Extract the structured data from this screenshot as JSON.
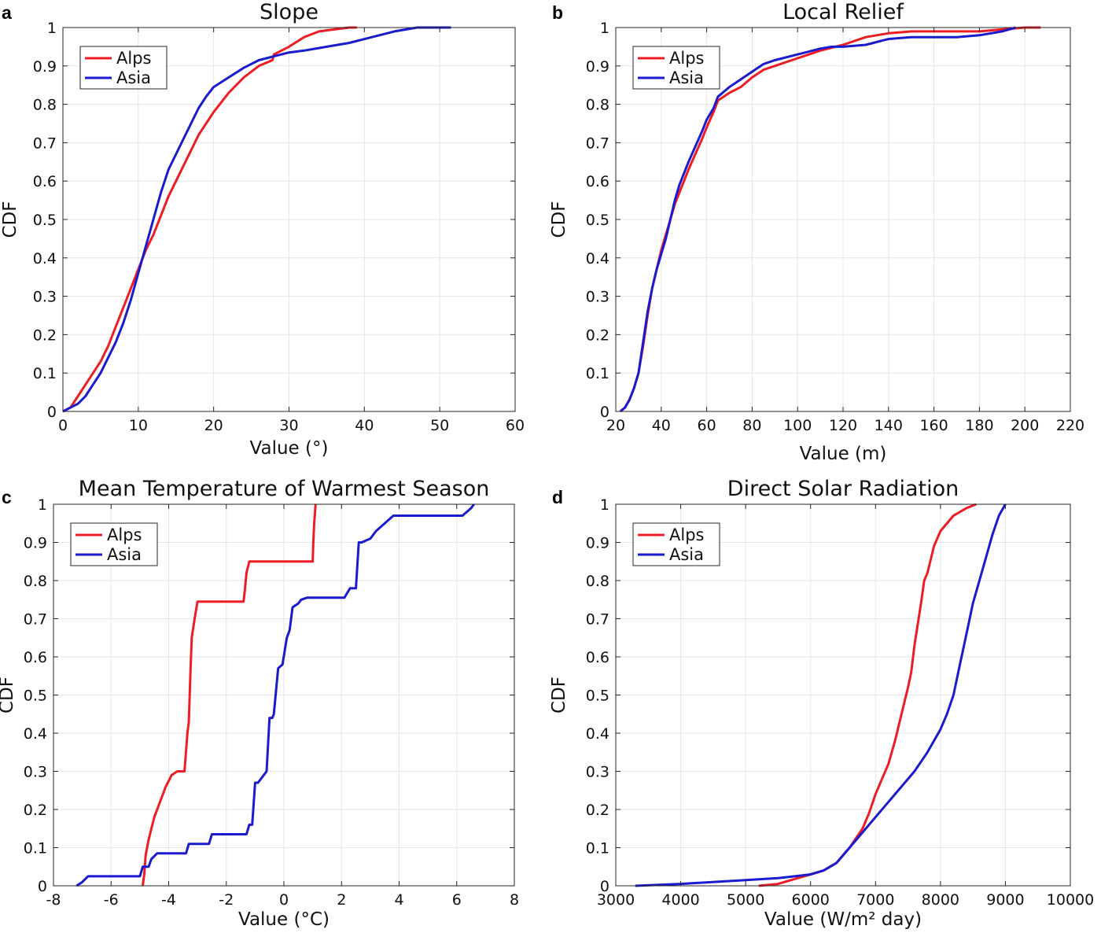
{
  "colors": {
    "alps": "#ee1c24",
    "asia": "#1a1acf"
  },
  "chart_data": [
    {
      "type": "line",
      "panel": "a",
      "title": "Slope",
      "xlabel": "Value (°)",
      "ylabel": "CDF",
      "xlim": [
        0,
        60
      ],
      "ylim": [
        0,
        1
      ],
      "xticks": [
        0,
        10,
        20,
        30,
        40,
        50,
        60
      ],
      "yticks": [
        0,
        0.1,
        0.2,
        0.3,
        0.4,
        0.5,
        0.6,
        0.7,
        0.8,
        0.9,
        1
      ],
      "grid": true,
      "legend": {
        "position": "top-left",
        "entries": [
          "Alps",
          "Asia"
        ]
      },
      "series": [
        {
          "name": "Alps",
          "x": [
            0,
            1,
            2,
            3,
            4,
            5,
            6,
            7,
            8,
            9,
            10,
            11,
            12,
            13,
            14,
            15,
            16,
            17,
            18,
            19,
            20,
            22,
            24,
            26,
            27.8,
            28,
            30,
            32,
            34,
            36,
            38,
            39
          ],
          "y": [
            0,
            0.01,
            0.04,
            0.07,
            0.1,
            0.13,
            0.17,
            0.22,
            0.27,
            0.32,
            0.37,
            0.42,
            0.46,
            0.51,
            0.56,
            0.6,
            0.64,
            0.68,
            0.72,
            0.75,
            0.78,
            0.83,
            0.87,
            0.9,
            0.915,
            0.93,
            0.95,
            0.975,
            0.99,
            0.995,
            1,
            1
          ]
        },
        {
          "name": "Asia",
          "x": [
            0,
            1,
            2,
            3,
            4,
            5,
            6,
            7,
            8,
            9,
            10,
            11,
            12,
            13,
            14,
            15,
            16,
            17,
            18,
            19,
            20,
            22,
            24,
            26,
            28,
            30,
            32,
            35,
            38,
            41,
            44,
            47,
            50,
            51.5
          ],
          "y": [
            0,
            0.01,
            0.02,
            0.04,
            0.07,
            0.1,
            0.14,
            0.18,
            0.23,
            0.29,
            0.36,
            0.43,
            0.5,
            0.57,
            0.63,
            0.67,
            0.71,
            0.75,
            0.79,
            0.82,
            0.845,
            0.87,
            0.895,
            0.915,
            0.925,
            0.935,
            0.94,
            0.95,
            0.96,
            0.975,
            0.99,
            1,
            1,
            1
          ]
        }
      ]
    },
    {
      "type": "line",
      "panel": "b",
      "title": "Local Relief",
      "xlabel": "Value (m)",
      "ylabel": "CDF",
      "xlim": [
        20,
        220
      ],
      "ylim": [
        0,
        1
      ],
      "xticks": [
        20,
        40,
        60,
        80,
        100,
        120,
        140,
        160,
        180,
        200,
        220
      ],
      "yticks": [
        0,
        0.1,
        0.2,
        0.3,
        0.4,
        0.5,
        0.6,
        0.7,
        0.8,
        0.9,
        1
      ],
      "grid": true,
      "legend": {
        "position": "top-left",
        "entries": [
          "Alps",
          "Asia"
        ]
      },
      "series": [
        {
          "name": "Alps",
          "x": [
            22,
            24,
            26,
            28,
            30,
            32,
            34,
            36,
            38,
            40,
            42,
            44,
            46,
            48,
            50,
            52,
            55,
            58,
            60,
            63,
            65,
            70,
            75,
            80,
            85,
            90,
            100,
            110,
            120,
            130,
            140,
            150,
            160,
            180,
            190,
            200,
            207
          ],
          "y": [
            0,
            0.01,
            0.03,
            0.06,
            0.1,
            0.17,
            0.25,
            0.32,
            0.37,
            0.42,
            0.46,
            0.5,
            0.54,
            0.57,
            0.6,
            0.63,
            0.67,
            0.71,
            0.74,
            0.78,
            0.81,
            0.83,
            0.845,
            0.87,
            0.89,
            0.9,
            0.92,
            0.94,
            0.955,
            0.975,
            0.985,
            0.99,
            0.99,
            0.99,
            0.995,
            1,
            1
          ]
        },
        {
          "name": "Asia",
          "x": [
            22,
            24,
            26,
            28,
            30,
            32,
            34,
            36,
            38,
            40,
            42,
            44,
            46,
            48,
            50,
            52,
            55,
            58,
            60,
            63,
            65,
            70,
            75,
            80,
            85,
            90,
            100,
            110,
            115,
            120,
            130,
            140,
            150,
            160,
            170,
            180,
            190,
            196
          ],
          "y": [
            0,
            0.01,
            0.03,
            0.06,
            0.1,
            0.18,
            0.26,
            0.32,
            0.37,
            0.41,
            0.45,
            0.5,
            0.55,
            0.59,
            0.62,
            0.65,
            0.69,
            0.73,
            0.76,
            0.79,
            0.82,
            0.845,
            0.865,
            0.885,
            0.905,
            0.915,
            0.93,
            0.945,
            0.95,
            0.95,
            0.955,
            0.97,
            0.975,
            0.975,
            0.975,
            0.98,
            0.99,
            1
          ]
        }
      ]
    },
    {
      "type": "line",
      "panel": "c",
      "title": "Mean Temperature of Warmest Season",
      "xlabel": "Value (°C)",
      "ylabel": "CDF",
      "xlim": [
        -8,
        8
      ],
      "ylim": [
        0,
        1
      ],
      "xticks": [
        -8,
        -6,
        -4,
        -2,
        0,
        2,
        4,
        6,
        8
      ],
      "yticks": [
        0,
        0.1,
        0.2,
        0.3,
        0.4,
        0.5,
        0.6,
        0.7,
        0.8,
        0.9,
        1
      ],
      "grid": true,
      "legend": {
        "position": "top-left",
        "entries": [
          "Alps",
          "Asia"
        ]
      },
      "series": [
        {
          "name": "Alps",
          "x": [
            -4.9,
            -4.85,
            -4.8,
            -4.7,
            -4.6,
            -4.5,
            -4.3,
            -4.1,
            -3.9,
            -3.7,
            -3.5,
            -3.45,
            -3.35,
            -3.3,
            -3.25,
            -3.2,
            -3.1,
            -3.0,
            -1.4,
            -1.35,
            -1.3,
            -1.2,
            1.0,
            1.02,
            1.05,
            1.1
          ],
          "y": [
            0,
            0.03,
            0.08,
            0.12,
            0.15,
            0.18,
            0.22,
            0.26,
            0.29,
            0.3,
            0.3,
            0.3,
            0.4,
            0.43,
            0.55,
            0.65,
            0.7,
            0.745,
            0.745,
            0.78,
            0.82,
            0.85,
            0.85,
            0.9,
            0.95,
            1
          ]
        },
        {
          "name": "Asia",
          "x": [
            -7.2,
            -7.0,
            -6.8,
            -5.0,
            -4.9,
            -4.7,
            -4.6,
            -4.4,
            -3.4,
            -3.3,
            -2.6,
            -2.5,
            -1.3,
            -1.2,
            -1.1,
            -1.0,
            -0.9,
            -0.8,
            -0.6,
            -0.5,
            -0.4,
            -0.35,
            -0.2,
            -0.05,
            0.1,
            0.2,
            0.3,
            0.4,
            0.5,
            0.6,
            0.8,
            2.1,
            2.3,
            2.5,
            2.6,
            2.7,
            3.0,
            3.2,
            3.5,
            3.8,
            6.2,
            6.5,
            6.6
          ],
          "y": [
            0,
            0.01,
            0.025,
            0.025,
            0.05,
            0.05,
            0.07,
            0.085,
            0.085,
            0.11,
            0.11,
            0.135,
            0.135,
            0.16,
            0.16,
            0.27,
            0.27,
            0.28,
            0.3,
            0.44,
            0.44,
            0.45,
            0.57,
            0.58,
            0.65,
            0.67,
            0.73,
            0.735,
            0.74,
            0.75,
            0.755,
            0.755,
            0.78,
            0.78,
            0.9,
            0.9,
            0.91,
            0.93,
            0.95,
            0.97,
            0.97,
            0.99,
            1
          ]
        }
      ]
    },
    {
      "type": "line",
      "panel": "d",
      "title": "Direct Solar Radiation",
      "xlabel": "Value (W/m² day)",
      "ylabel": "CDF",
      "xlim": [
        3000,
        10000
      ],
      "ylim": [
        0,
        1
      ],
      "xticks": [
        3000,
        4000,
        5000,
        6000,
        7000,
        8000,
        9000,
        10000
      ],
      "yticks": [
        0,
        0.1,
        0.2,
        0.3,
        0.4,
        0.5,
        0.6,
        0.7,
        0.8,
        0.9,
        1
      ],
      "grid": true,
      "legend": {
        "position": "top-left",
        "entries": [
          "Alps",
          "Asia"
        ]
      },
      "series": [
        {
          "name": "Alps",
          "x": [
            5200,
            5500,
            5800,
            6000,
            6200,
            6400,
            6600,
            6800,
            6900,
            7000,
            7100,
            7200,
            7300,
            7400,
            7500,
            7550,
            7600,
            7700,
            7750,
            7800,
            7900,
            8000,
            8200,
            8400,
            8550
          ],
          "y": [
            0,
            0.005,
            0.02,
            0.03,
            0.04,
            0.06,
            0.1,
            0.15,
            0.19,
            0.24,
            0.28,
            0.32,
            0.38,
            0.45,
            0.52,
            0.56,
            0.63,
            0.74,
            0.8,
            0.82,
            0.89,
            0.93,
            0.97,
            0.99,
            1
          ]
        },
        {
          "name": "Asia",
          "x": [
            3300,
            4000,
            5000,
            5500,
            6000,
            6200,
            6400,
            6600,
            6800,
            7000,
            7200,
            7400,
            7600,
            7800,
            8000,
            8100,
            8200,
            8300,
            8400,
            8500,
            8600,
            8700,
            8800,
            8900,
            9000
          ],
          "y": [
            0,
            0.005,
            0.015,
            0.02,
            0.03,
            0.04,
            0.06,
            0.1,
            0.14,
            0.18,
            0.22,
            0.26,
            0.3,
            0.35,
            0.41,
            0.45,
            0.5,
            0.58,
            0.66,
            0.74,
            0.8,
            0.86,
            0.92,
            0.97,
            1
          ]
        }
      ]
    }
  ]
}
